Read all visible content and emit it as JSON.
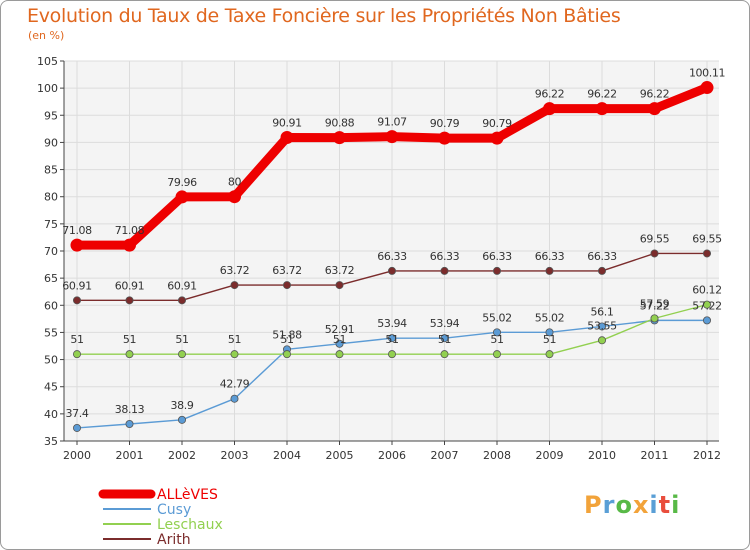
{
  "chart_data": {
    "type": "line",
    "title": "Evolution du Taux de Taxe Foncière sur les Propriétés Non Bâties",
    "unit_label": "(en %)",
    "x": [
      "2000",
      "2001",
      "2002",
      "2003",
      "2004",
      "2005",
      "2006",
      "2007",
      "2008",
      "2009",
      "2010",
      "2011",
      "2012"
    ],
    "ylim": [
      35,
      105
    ],
    "yticks": [
      35,
      40,
      45,
      50,
      55,
      60,
      65,
      70,
      75,
      80,
      85,
      90,
      95,
      100,
      105
    ],
    "grid": true,
    "series": [
      {
        "name": "ALLèVES",
        "color": "#ee0000",
        "values": [
          71.08,
          71.08,
          79.96,
          80,
          90.91,
          90.88,
          91.07,
          90.79,
          90.79,
          96.22,
          96.22,
          96.22,
          100.11
        ],
        "labels": [
          "71.08",
          "71.08",
          "79.96",
          "80",
          "90.91",
          "90.88",
          "91.07",
          "90.79",
          "90.79",
          "96.22",
          "96.22",
          "96.22",
          "100.11"
        ]
      },
      {
        "name": "Cusy",
        "color": "#5b9bd5",
        "values": [
          37.4,
          38.13,
          38.9,
          42.79,
          51.88,
          52.91,
          53.94,
          53.94,
          55.02,
          55.02,
          56.1,
          57.22,
          57.22
        ],
        "labels": [
          "37.4",
          "38.13",
          "38.9",
          "42.79",
          "51.88",
          "52.91",
          "53.94",
          "53.94",
          "55.02",
          "55.02",
          "56.1",
          "57.22",
          "57.22"
        ]
      },
      {
        "name": "Leschaux",
        "color": "#92d050",
        "values": [
          51,
          51,
          51,
          51,
          51,
          51,
          51,
          51,
          51,
          51,
          53.55,
          57.59,
          60.12
        ],
        "labels": [
          "51",
          "51",
          "51",
          "51",
          "51",
          "51",
          "51",
          "51",
          "51",
          "51",
          "53.55",
          "57.59",
          "60.12"
        ]
      },
      {
        "name": "Arith",
        "color": "#7b2c2c",
        "values": [
          60.91,
          60.91,
          60.91,
          63.72,
          63.72,
          63.72,
          66.33,
          66.33,
          66.33,
          66.33,
          66.33,
          69.55,
          69.55
        ],
        "labels": [
          "60.91",
          "60.91",
          "60.91",
          "63.72",
          "63.72",
          "63.72",
          "66.33",
          "66.33",
          "66.33",
          "66.33",
          "66.33",
          "69.55",
          "69.55"
        ]
      }
    ],
    "legend": "bottom-left"
  },
  "logo": {
    "letters": [
      "P",
      "r",
      "o",
      "x",
      "i",
      "t",
      "i"
    ],
    "colors": [
      "#f2a33a",
      "#5a9fd6",
      "#58b947",
      "#f2a33a",
      "#5a9fd6",
      "#e94e3d",
      "#58b947"
    ]
  }
}
